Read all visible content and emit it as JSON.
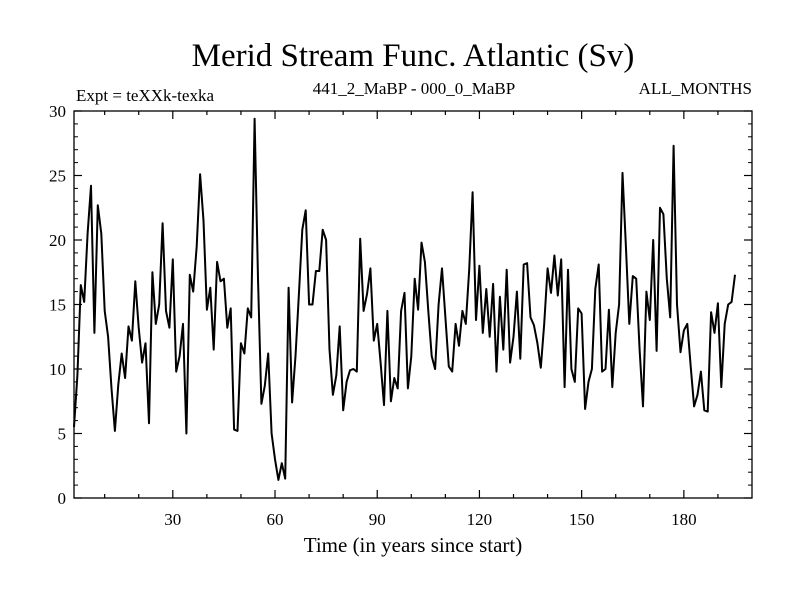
{
  "chart_data": {
    "type": "line",
    "title": "Merid Stream Func. Atlantic (Sv)",
    "subtitle_left": "Expt = teXXk-texka",
    "subtitle_center": "441_2_MaBP - 000_0_MaBP",
    "subtitle_right": "ALL_MONTHS",
    "xlabel": "Time (in years since start)",
    "ylabel": "",
    "xlim": [
      1,
      200
    ],
    "ylim": [
      0,
      30
    ],
    "x_ticks": [
      30,
      60,
      90,
      120,
      150,
      180
    ],
    "y_ticks": [
      0,
      5,
      10,
      15,
      20,
      25,
      30
    ],
    "grid": false,
    "series": [
      {
        "name": "Merid Stream Func. Atlantic",
        "x_start": 1,
        "x_step": 1,
        "values": [
          5.5,
          9.5,
          16.5,
          15.2,
          20.5,
          24.2,
          12.8,
          22.7,
          20.5,
          14.5,
          12.5,
          8.5,
          5.2,
          8.8,
          11.2,
          9.3,
          13.3,
          12.2,
          16.8,
          13.2,
          10.5,
          12.0,
          5.8,
          17.5,
          13.5,
          15.0,
          21.3,
          14.5,
          13.2,
          18.5,
          9.8,
          11.0,
          13.5,
          5.0,
          17.3,
          16.0,
          19.5,
          25.1,
          21.5,
          14.6,
          16.3,
          11.5,
          18.3,
          16.8,
          17.0,
          13.2,
          14.7,
          5.3,
          5.2,
          12.0,
          11.2,
          14.7,
          14.0,
          29.4,
          17.0,
          7.3,
          8.7,
          11.2,
          5.0,
          3.0,
          1.4,
          2.7,
          1.5,
          16.3,
          7.4,
          11.0,
          15.8,
          20.8,
          22.3,
          15.0,
          15.0,
          17.6,
          17.6,
          20.8,
          20.0,
          11.5,
          8.0,
          9.5,
          13.3,
          6.8,
          9.0,
          9.9,
          10.0,
          9.8,
          20.1,
          14.5,
          15.8,
          17.8,
          12.2,
          13.5,
          10.5,
          7.2,
          14.5,
          7.5,
          9.3,
          8.5,
          14.5,
          15.9,
          8.5,
          11.0,
          17.0,
          14.6,
          19.8,
          18.3,
          14.5,
          11.0,
          10.0,
          15.0,
          17.8,
          14.0,
          10.2,
          9.8,
          13.5,
          11.8,
          14.5,
          13.5,
          17.7,
          23.7,
          13.8,
          18.0,
          12.8,
          16.2,
          12.5,
          16.6,
          9.8,
          15.6,
          11.5,
          17.7,
          10.5,
          12.5,
          16.0,
          10.8,
          18.1,
          18.2,
          14.0,
          13.4,
          12.0,
          10.1,
          13.5,
          17.8,
          15.9,
          18.8,
          15.7,
          18.5,
          8.6,
          17.7,
          10.0,
          9.0,
          14.7,
          14.3,
          6.9,
          9.0,
          10.0,
          16.2,
          18.1,
          9.8,
          10.0,
          14.6,
          8.6,
          12.8,
          15.0,
          25.2,
          19.5,
          13.5,
          17.2,
          17.0,
          11.5,
          7.1,
          16.0,
          13.8,
          20.0,
          11.4,
          22.5,
          22.0,
          17.0,
          14.0,
          27.3,
          15.0,
          11.3,
          13.0,
          13.5,
          10.2,
          7.1,
          8.0,
          9.8,
          6.8,
          6.7,
          14.4,
          12.8,
          15.1,
          8.6,
          13.5,
          15.0,
          15.2,
          17.3
        ]
      }
    ]
  }
}
